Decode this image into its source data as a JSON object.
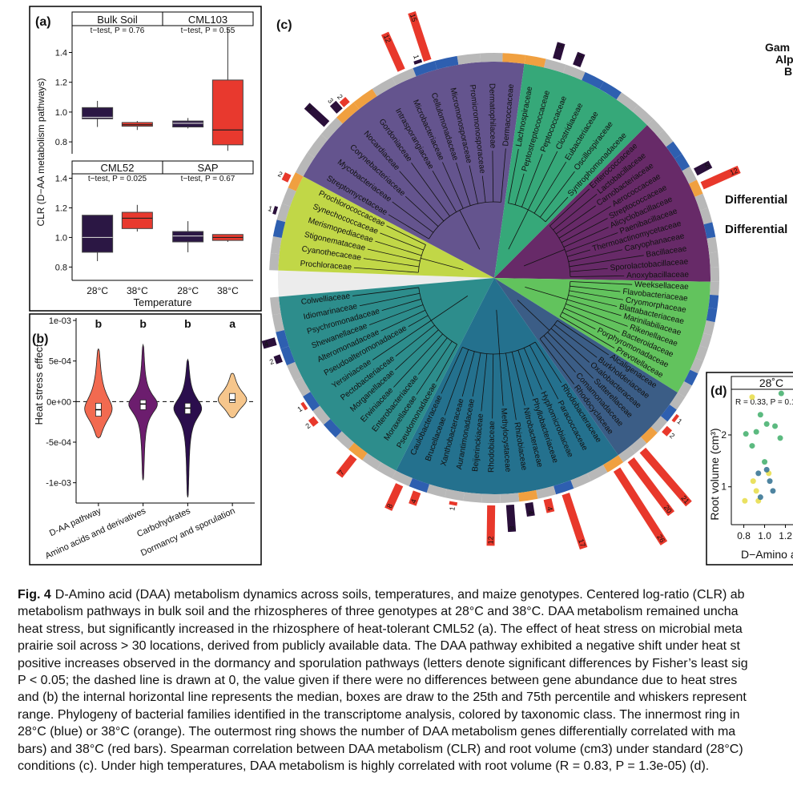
{
  "chart_data": [
    {
      "type": "box",
      "label": "(a)",
      "ylabel": "CLR (D−AA metabolism pathways)",
      "xlabel": "Temperature",
      "categories": [
        "28°C",
        "38°C"
      ],
      "colors": [
        "#2b1744",
        "#e8392e"
      ],
      "yticks": [
        0.8,
        {
          "value": 1,
          "label": "1.0"
        },
        1.2,
        1.4
      ],
      "facets": [
        {
          "title": "Bulk Soil",
          "subtitle": "t−test, P = 0.76",
          "ylim": [
            0.72,
            1.58
          ],
          "boxes": [
            {
              "whislo": 0.9,
              "q1": 0.955,
              "med": 0.965,
              "q3": 1.03,
              "whishi": 1.075
            },
            {
              "whislo": 0.88,
              "q1": 0.905,
              "med": 0.915,
              "q3": 0.93,
              "whishi": 0.94
            }
          ]
        },
        {
          "title": "CML103",
          "subtitle": "t−test, P = 0.55",
          "ylim": [
            0.72,
            1.58
          ],
          "boxes": [
            {
              "whislo": 0.89,
              "q1": 0.9,
              "med": 0.925,
              "q3": 0.94,
              "whishi": 0.96
            },
            {
              "whislo": 0.74,
              "q1": 0.78,
              "med": 0.88,
              "q3": 1.215,
              "whishi": 1.56
            }
          ]
        },
        {
          "title": "CML52",
          "subtitle": "t−test, P = 0.025",
          "ylim": [
            0.71,
            1.43
          ],
          "boxes": [
            {
              "whislo": 0.84,
              "q1": 0.9,
              "med": 1.0,
              "q3": 1.15,
              "whishi": 1.15
            },
            {
              "whislo": 1.04,
              "q1": 1.06,
              "med": 1.13,
              "q3": 1.17,
              "whishi": 1.22
            }
          ]
        },
        {
          "title": "SAP",
          "subtitle": "t−test, P = 0.67",
          "ylim": [
            0.71,
            1.43
          ],
          "boxes": [
            {
              "whislo": 0.9,
              "q1": 0.97,
              "med": 1.01,
              "q3": 1.04,
              "whishi": 1.11
            },
            {
              "whislo": 0.97,
              "q1": 0.98,
              "med": 1.0,
              "q3": 1.02,
              "whishi": 1.02
            }
          ]
        }
      ]
    },
    {
      "type": "violin",
      "label": "(b)",
      "ylabel": "Heat stress effect",
      "categories": [
        "D-AA pathway",
        "Amino acids and derivatives",
        "Carbohydrates",
        "Dormancy and sporulation"
      ],
      "letters": [
        "b",
        "b",
        "b",
        "a"
      ],
      "colors": [
        "#f26a50",
        "#6c1d6e",
        "#2b0e4d",
        "#f6c68c"
      ],
      "ylim": [
        -0.00125,
        0.00103
      ],
      "yticks": [
        {
          "value": 0.001,
          "label": "1e-03"
        },
        {
          "value": 0.0005,
          "label": "5e-04"
        },
        {
          "value": 0,
          "label": "0e+00"
        },
        {
          "value": -0.0005,
          "label": "-5e-04"
        },
        {
          "value": -0.001,
          "label": "-1e-03"
        }
      ],
      "violins": [
        {
          "min": -0.00045,
          "q1": -0.00018,
          "med": -0.0001,
          "q3": -2e-05,
          "max": 0.00065
        },
        {
          "min": -0.00097,
          "q1": -0.0001,
          "med": -3e-05,
          "q3": 2e-05,
          "max": 0.0007
        },
        {
          "min": -0.00118,
          "q1": -0.00015,
          "med": -8e-05,
          "q3": -2e-05,
          "max": 0.00052
        },
        {
          "min": -0.0002,
          "q1": -1e-05,
          "med": 2e-05,
          "q3": 0.0001,
          "max": 0.00035
        }
      ]
    },
    {
      "type": "phylo",
      "label": "(c)",
      "bar_colors": {
        "bars_28": "#2a0f3a",
        "bars_38": "#e8382b"
      },
      "side_labels": [
        "Gam",
        "Alp",
        "B",
        "Differential",
        "Differential"
      ],
      "clades": [
        {
          "color": "#c1d747",
          "families": [
            "Prochloraceae",
            "Cyanothecaceae",
            "Stigonemataceae",
            "Merismopediaceae",
            "Synechococcaceae",
            "Prochlorococcaceae"
          ],
          "ring": [
            null,
            null,
            "#2e5fb0",
            null,
            null,
            "#f0a040"
          ],
          "bars_28": [
            null,
            null,
            null,
            1,
            null,
            null
          ],
          "bars_38": [
            null,
            null,
            null,
            null,
            null,
            2
          ]
        },
        {
          "color": "#64548e",
          "families": [
            "Streptomycetaceae",
            "Mycobacteriaceae",
            "Corynebacteriaceae",
            "Nocardiaceae",
            "Gordoniaceae",
            "Intrasporangiaceae",
            "Microbacteriaceae",
            "Cellulomonadaceae",
            "Micromonosporaceae",
            "Promicromonosporaceae",
            "Dermatophilaceae",
            "Dermacoccaceae"
          ],
          "ring": [
            null,
            null,
            null,
            "#f0a040",
            "#f0a040",
            null,
            null,
            "#2e5fb0",
            "#2e5fb0",
            null,
            null,
            "#f0a040"
          ],
          "bars_28": [
            null,
            null,
            8,
            3,
            null,
            null,
            null,
            1,
            null,
            null,
            null,
            null
          ],
          "bars_38": [
            null,
            null,
            null,
            2,
            null,
            null,
            12,
            15,
            null,
            null,
            null,
            null
          ]
        },
        {
          "color": "#36a879",
          "families": [
            "Lachnospiraceae",
            "Peptostreptococcaceae",
            "Peptococcaceae",
            "Clostridiaceae",
            "Eubacteriaceae",
            "Oscillospiraceae",
            "Syntrophomonadaceae"
          ],
          "ring": [
            "#f0a040",
            null,
            null,
            "#2e5fb0",
            "#2e5fb0",
            null,
            null
          ],
          "bars_28": [
            null,
            5,
            4,
            null,
            null,
            null,
            null
          ],
          "bars_38": [
            null,
            null,
            null,
            null,
            null,
            null,
            null
          ]
        },
        {
          "color": "#672a68",
          "families": [
            "Enterococcaceae",
            "Lactobacillaceae",
            "Carnobacteriaceae",
            "Aerococcaceae",
            "Streptococcaceae",
            "Alicyclobacillaceae",
            "Paenibacillaceae",
            "Thermoactinomycetaceae",
            "Caryophanaceae",
            "Bacillaceae",
            "Sporolactobacillaceae",
            "Anoxybacillaceae"
          ],
          "ring": [
            null,
            null,
            "#2e5fb0",
            "#2e5fb0",
            null,
            "#f0a040",
            null,
            null,
            "#2e5fb0",
            null,
            null,
            null
          ],
          "bars_28": [
            null,
            null,
            null,
            null,
            5,
            null,
            null,
            null,
            null,
            null,
            null,
            null
          ],
          "bars_38": [
            null,
            null,
            null,
            null,
            null,
            12,
            null,
            null,
            null,
            null,
            null,
            null
          ]
        },
        {
          "color": "#62c35d",
          "families": [
            "Weeksellaceae",
            "Flavobacteriaceae",
            "Cryomorphaceae",
            "Blattabacteriaceae",
            "Marinilabiliaceae",
            "Rikenellaceae",
            "Bacteroidaceae",
            "Porphyromonadaceae",
            "Prevotellaceae"
          ],
          "ring": [
            null,
            "#2e5fb0",
            "#2e5fb0",
            null,
            null,
            null,
            null,
            "#2e5fb0",
            null
          ],
          "bars_28": [
            null,
            null,
            null,
            null,
            null,
            null,
            null,
            null,
            null
          ],
          "bars_38": [
            null,
            null,
            null,
            null,
            null,
            null,
            null,
            null,
            null
          ]
        },
        {
          "color": "#3b5d86",
          "families": [
            "Alcaligenaceae",
            "Burkholderiaceae",
            "Oxalobacteraceae",
            "Sutterellaceae",
            "Comamonadaceae",
            "Rhodocyclaceae"
          ],
          "ring": [
            null,
            "#2e5fb0",
            null,
            "#f0a040",
            null,
            null
          ],
          "bars_28": [
            null,
            null,
            null,
            null,
            null,
            null
          ],
          "bars_38": [
            null,
            1,
            2,
            null,
            21,
            20
          ]
        },
        {
          "color": "#24718e",
          "families": [
            "Rhodobacteraceae",
            "Paracoccaceae",
            "Hyphomicrobiaceae",
            "Phyllobacteriaceae",
            "Nitrobacteraceae",
            "Rhizobiaceae",
            "Methylocystaceae",
            "Rhodobiaceae",
            "Beijerinckiaceae",
            "Aurantimonadaceae",
            "Xanthobacteraceae",
            "Brucellaceae",
            "Caulobacteraceae"
          ],
          "ring": [
            "#f0a040",
            null,
            null,
            "#2e5fb0",
            null,
            "#f0a040",
            null,
            null,
            null,
            null,
            null,
            "#2e5fb0",
            null
          ],
          "bars_28": [
            null,
            null,
            null,
            null,
            null,
            4,
            8,
            null,
            null,
            null,
            null,
            null,
            null
          ],
          "bars_38": [
            26,
            null,
            null,
            17,
            4,
            null,
            null,
            12,
            null,
            1,
            null,
            4,
            8
          ]
        },
        {
          "color": "#2d8d8c",
          "families": [
            "Pseudomonadaceae",
            "Moraxellaceae",
            "Enterobacteriaceae",
            "Erwiniaceae",
            "Morganellaceae",
            "Pectobacteriaceae",
            "Yersiniaceae",
            "Pseudoalteromonadaceae",
            "Alteromonadaceae",
            "Shewanellaceae",
            "Psychromonadaceae",
            "Idiomarinaceae",
            "Colwelliaceae"
          ],
          "ring": [
            null,
            null,
            "#f0a040",
            null,
            "#2e5fb0",
            null,
            "#2e5fb0",
            null,
            null,
            "#2e5fb0",
            "#2e5fb0",
            null,
            null
          ],
          "bars_28": [
            null,
            null,
            null,
            null,
            null,
            null,
            null,
            null,
            null,
            2,
            4,
            null,
            null
          ],
          "bars_38": [
            null,
            null,
            7,
            null,
            null,
            2,
            1,
            null,
            null,
            null,
            null,
            null,
            null
          ]
        }
      ]
    },
    {
      "type": "scatter",
      "label": "(d)",
      "facet_title": "28˚C",
      "annotation": "R = 0.33, P = 0.1",
      "ylabel": "Root volume (cm³)",
      "xlabel": "D−Amino a",
      "xlim": [
        0.68,
        1.45
      ],
      "ylim": [
        0.27,
        2.88
      ],
      "xticks": [
        0.8,
        {
          "value": 1,
          "label": "1.0"
        },
        1.2
      ],
      "yticks": [
        1,
        2
      ],
      "series": [
        {
          "color": "#3fae6a",
          "x": [
            0.96,
            1.16,
            0.82,
            0.92,
            1.02,
            1.1,
            0.88,
            1.0,
            1.15
          ],
          "values": [
            2.39,
            2.8,
            2.02,
            2.06,
            2.21,
            2.17,
            1.79,
            1.48,
            1.94
          ]
        },
        {
          "color": "#e6dc45",
          "x": [
            0.88,
            0.89,
            0.81,
            0.92,
            1.04,
            0.94
          ],
          "values": [
            2.73,
            1.11,
            0.73,
            0.92,
            1.26,
            0.73
          ]
        },
        {
          "color": "#2f6f8f",
          "x": [
            1.02,
            1.05,
            0.96,
            0.94,
            1.08
          ],
          "values": [
            1.33,
            1.11,
            0.8,
            1.26,
            0.92
          ]
        }
      ]
    }
  ],
  "caption": {
    "label": "Fig. 4",
    "lines": [
      "D-Amino acid (DAA) metabolism dynamics across soils, temperatures, and maize genotypes. Centered log-ratio (CLR) ab",
      "metabolism pathways in bulk soil and the rhizospheres of three genotypes at 28°C and 38°C. DAA metabolism remained uncha",
      "heat stress, but significantly increased in the rhizosphere of heat-tolerant CML52 (a). The effect of heat stress on microbial meta",
      "prairie soil across > 30 locations, derived from publicly available data. The DAA pathway exhibited a negative shift under heat st",
      "positive increases observed in the dormancy and sporulation pathways (letters denote significant differences by Fisher’s least sig",
      "P < 0.05; the dashed line is drawn at 0, the value given if there were no differences between gene abundance due to heat stres",
      "and (b) the internal horizontal line represents the median, boxes are draw to the 25th and 75th percentile and whiskers represent",
      "range. Phylogeny of bacterial families identified in the transcriptome analysis, colored by taxonomic class. The innermost ring in",
      "28°C (blue) or 38°C (orange). The outermost ring shows the number of DAA metabolism genes differentially correlated with ma",
      "bars) and 38°C (red bars). Spearman correlation between DAA metabolism (CLR) and root volume (cm3) under standard (28°C)",
      "conditions (c). Under high temperatures, DAA metabolism is highly correlated with root volume (R = 0.83, P = 1.3e-05) (d)."
    ]
  }
}
